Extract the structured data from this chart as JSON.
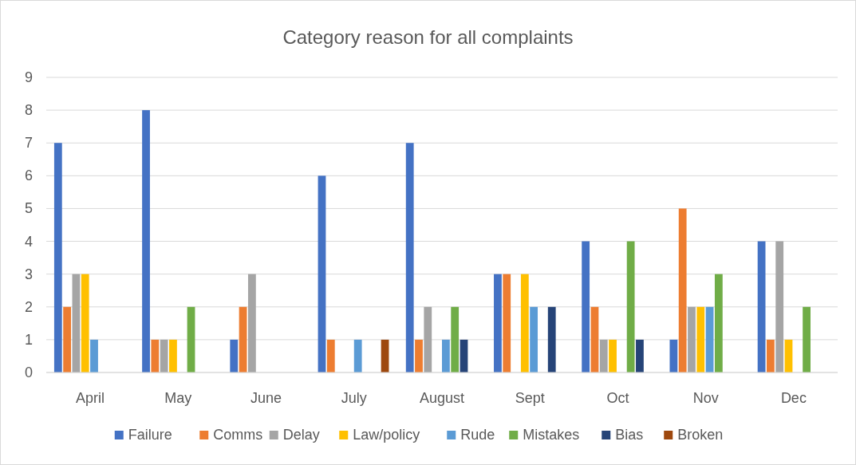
{
  "chart_data": {
    "type": "bar",
    "title": "Category reason for all complaints",
    "categories": [
      "April",
      "May",
      "June",
      "July",
      "August",
      "Sept",
      "Oct",
      "Nov",
      "Dec"
    ],
    "series": [
      {
        "name": "Failure",
        "color": "#4472c4",
        "values": [
          7,
          8,
          1,
          6,
          7,
          3,
          4,
          1,
          4
        ]
      },
      {
        "name": "Comms",
        "color": "#ed7d31",
        "values": [
          2,
          1,
          2,
          1,
          1,
          3,
          2,
          5,
          1
        ]
      },
      {
        "name": "Delay",
        "color": "#a5a5a5",
        "values": [
          3,
          1,
          3,
          0,
          2,
          0,
          1,
          2,
          4
        ]
      },
      {
        "name": "Law/policy",
        "color": "#ffc000",
        "values": [
          3,
          1,
          0,
          0,
          0,
          3,
          1,
          2,
          1
        ]
      },
      {
        "name": "Rude",
        "color": "#5b9bd5",
        "values": [
          1,
          0,
          0,
          1,
          1,
          2,
          0,
          2,
          0
        ]
      },
      {
        "name": "Mistakes",
        "color": "#70ad47",
        "values": [
          0,
          2,
          0,
          0,
          2,
          0,
          4,
          3,
          2
        ]
      },
      {
        "name": "Bias",
        "color": "#264478",
        "values": [
          0,
          0,
          0,
          0,
          1,
          2,
          1,
          0,
          0
        ]
      },
      {
        "name": "Broken",
        "color": "#9e480e",
        "values": [
          0,
          0,
          0,
          1,
          0,
          0,
          0,
          0,
          0
        ]
      }
    ],
    "ylim": [
      0,
      9
    ],
    "yticks": [
      0,
      1,
      2,
      3,
      4,
      5,
      6,
      7,
      8,
      9
    ],
    "grid": "y",
    "legend": "bottom"
  }
}
